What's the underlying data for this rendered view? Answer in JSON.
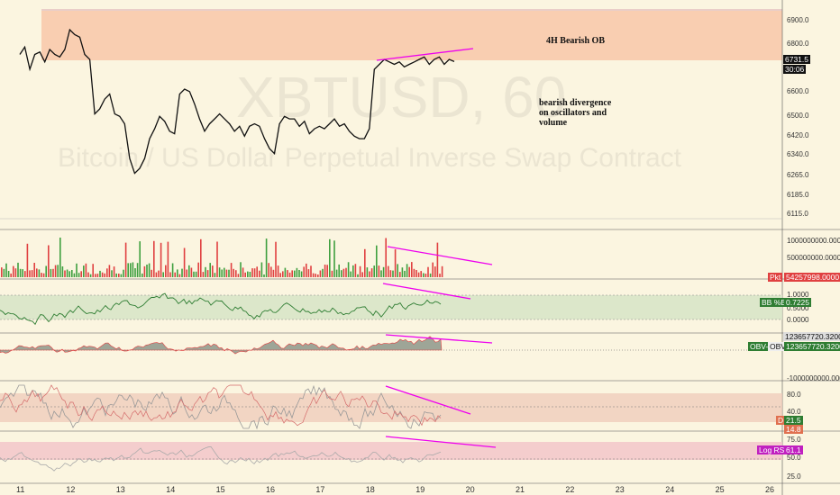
{
  "watermark": {
    "symbol": "XBTUSD, 60",
    "description": "Bitcoin / US Dollar Perpetual Inverse Swap Contract"
  },
  "annotations": {
    "ob_label": "4H Bearish OB",
    "divergence_label_1": "bearish divergence",
    "divergence_label_2": "on oscillators and",
    "divergence_label_3": "volume"
  },
  "price_axis_labels": [
    "6900.0",
    "6800.0",
    "6731.5",
    "6600.0",
    "6500.0",
    "6420.0",
    "6340.0",
    "6265.0",
    "6185.0",
    "6115.0"
  ],
  "last_price": "6731.5",
  "countdown": "30:06",
  "volume_axis_labels": [
    "1000000000.0000",
    "500000000.0000"
  ],
  "volume_tag": {
    "label": "Pkt",
    "value": "54257998.0000"
  },
  "bb_axis_labels": [
    "1.0000",
    "0.5000",
    "0.0000"
  ],
  "bb_tag": {
    "label": "BB %B",
    "value": "0.7225"
  },
  "obv_axis_labels": [
    "-1000000000.0000"
  ],
  "obv_top_value": "123657720.3200",
  "obv_tag": {
    "label1": "OBV-",
    "label2": "OBV",
    "value": "123657720.3200"
  },
  "stoch_axis_labels": [
    "80.0",
    "40.0"
  ],
  "stoch_tag": {
    "label": "D",
    "k_value": "21.5",
    "d_value": "14.8"
  },
  "rsi_axis_labels": [
    "75.0",
    "50.0",
    "25.0"
  ],
  "rsi_tag": {
    "label": "Log RSI",
    "value": "61.1"
  },
  "time_axis_labels": [
    "11",
    "12",
    "13",
    "14",
    "15",
    "16",
    "17",
    "18",
    "19",
    "20",
    "21",
    "22",
    "23",
    "24",
    "25",
    "26"
  ],
  "colors": {
    "background": "#fbf5e0",
    "ob_zone": "#f8c7a8",
    "divergence": "#ee00ee",
    "volume_up": "#3fa03f",
    "volume_down": "#e04040",
    "bb_line": "#2e7d32",
    "bb_band": "#d8e6c8",
    "obv_fill": "#8d978a",
    "stoch_band": "#efc9b9",
    "rsi_band": "#f2c6c9"
  },
  "chart_data": {
    "type": "line",
    "title": "XBTUSD, 60",
    "x_axis": [
      "11",
      "12",
      "13",
      "14",
      "15",
      "16",
      "17",
      "18",
      "19",
      "20",
      "21",
      "22",
      "23",
      "24",
      "25",
      "26"
    ],
    "price_series": {
      "name": "XBTUSD",
      "x_day": [
        11.0,
        11.1,
        11.2,
        11.3,
        11.4,
        11.5,
        11.6,
        11.7,
        11.8,
        11.9,
        12.0,
        12.1,
        12.2,
        12.3,
        12.4,
        12.5,
        12.6,
        12.7,
        12.8,
        12.9,
        13.0,
        13.1,
        13.2,
        13.3,
        13.4,
        13.5,
        13.6,
        13.7,
        13.8,
        13.9,
        14.0,
        14.1,
        14.2,
        14.3,
        14.4,
        14.5,
        14.6,
        14.7,
        14.8,
        14.9,
        15.0,
        15.1,
        15.2,
        15.3,
        15.4,
        15.5,
        15.6,
        15.7,
        15.8,
        15.9,
        16.0,
        16.1,
        16.2,
        16.3,
        16.4,
        16.5,
        16.6,
        16.7,
        16.8,
        16.9,
        17.0,
        17.1,
        17.2,
        17.3,
        17.4,
        17.5,
        17.6,
        17.7,
        17.8,
        17.9,
        18.0,
        18.1,
        18.2,
        18.3,
        18.4,
        18.5,
        18.6,
        18.7,
        18.8,
        18.9,
        19.0,
        19.1,
        19.2,
        19.3,
        19.4,
        19.5,
        19.6,
        19.7
      ],
      "values": [
        6760,
        6790,
        6700,
        6760,
        6770,
        6730,
        6780,
        6760,
        6750,
        6780,
        6860,
        6840,
        6830,
        6760,
        6740,
        6520,
        6540,
        6580,
        6600,
        6520,
        6510,
        6480,
        6340,
        6280,
        6300,
        6340,
        6420,
        6460,
        6510,
        6490,
        6450,
        6440,
        6600,
        6620,
        6610,
        6560,
        6500,
        6450,
        6480,
        6500,
        6520,
        6500,
        6480,
        6450,
        6470,
        6430,
        6470,
        6480,
        6470,
        6420,
        6380,
        6360,
        6480,
        6510,
        6500,
        6500,
        6470,
        6490,
        6440,
        6460,
        6470,
        6460,
        6480,
        6500,
        6470,
        6480,
        6450,
        6430,
        6420,
        6420,
        6460,
        6700,
        6720,
        6740,
        6730,
        6720,
        6730,
        6710,
        6720,
        6730,
        6740,
        6750,
        6720,
        6740,
        6750,
        6720,
        6740,
        6731.5
      ]
    },
    "zones": [
      {
        "label": "4H Bearish OB",
        "from": 6740,
        "to": 6930
      }
    ],
    "y_range": [
      6090,
      6940
    ]
  }
}
